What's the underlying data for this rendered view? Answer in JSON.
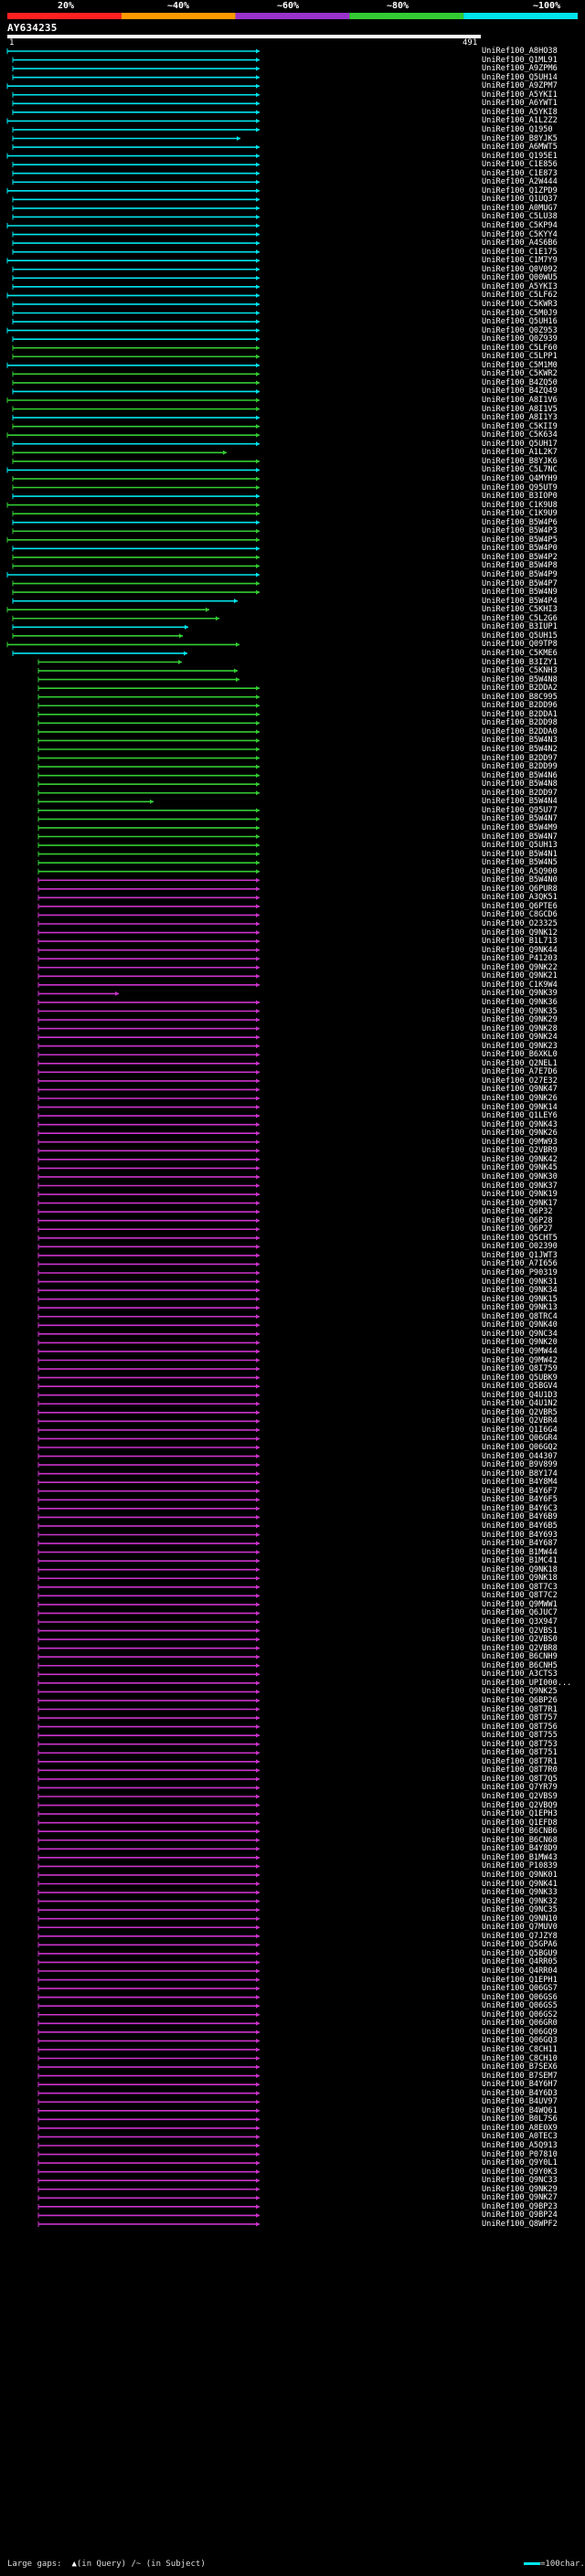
{
  "scale": {
    "ticks": [
      "20%",
      "~40%",
      "~60%",
      "~80%",
      "~100%"
    ],
    "colors": [
      "#ff2020",
      "#ff9900",
      "#9933cc",
      "#33cc33",
      "#00e5ee"
    ]
  },
  "query": {
    "id": "AY634235",
    "start": "1",
    "end": "491"
  },
  "hits": [
    "UniRef100_A8HO38",
    "UniRef100_Q1ML91",
    "UniRef100_A9ZPM6",
    "UniRef100_Q5UH14",
    "UniRef100_A9ZPM7",
    "UniRef100_A5YKI1",
    "UniRef100_A6YWT1",
    "UniRef100_A5YKI8",
    "UniRef100_A1L2Z2",
    "UniRef100_Q1950",
    "UniRef100_B8YJK5",
    "UniRef100_A6MWT5",
    "UniRef100_Q195E1",
    "UniRef100_C1E856",
    "UniRef100_C1E873",
    "UniRef100_A2W444",
    "UniRef100_Q1ZPD9",
    "UniRef100_Q1UQ37",
    "UniRef100_A0MUG7",
    "UniRef100_C5LU38",
    "UniRef100_C5KP94",
    "UniRef100_C5KYY4",
    "UniRef100_A4S6B6",
    "UniRef100_C1E175",
    "UniRef100_C1M7Y9",
    "UniRef100_Q0V092",
    "UniRef100_Q00WU5",
    "UniRef100_A5YKI3",
    "UniRef100_C5LF62",
    "UniRef100_C5KWR3",
    "UniRef100_C5M0J9",
    "UniRef100_Q5UH16",
    "UniRef100_Q0Z953",
    "UniRef100_Q0Z939",
    "UniRef100_C5LF60",
    "UniRef100_C5LPP1",
    "UniRef100_C5M1M0",
    "UniRef100_C5KWR2",
    "UniRef100_B4ZQ50",
    "UniRef100_B4ZQ49",
    "UniRef100_A8I1V6",
    "UniRef100_A8I1V5",
    "UniRef100_A8I1Y3",
    "UniRef100_C5KII9",
    "UniRef100_C5K634",
    "UniRef100_Q5UH17",
    "UniRef100_A1L2K7",
    "UniRef100_B8YJK6",
    "UniRef100_C5L7NC",
    "UniRef100_Q4MYH9",
    "UniRef100_Q95UT9",
    "UniRef100_B3IOP0",
    "UniRef100_C1K9U8",
    "UniRef100_C1K9U9",
    "UniRef100_B5W4P6",
    "UniRef100_B5W4P3",
    "UniRef100_B5W4P5",
    "UniRef100_B5W4P0",
    "UniRef100_B5W4P2",
    "UniRef100_B5W4P8",
    "UniRef100_B5W4P9",
    "UniRef100_B5W4P7",
    "UniRef100_B5W4N9",
    "UniRef100_B5W4P4",
    "UniRef100_C5KHI3",
    "UniRef100_C5L2G6",
    "UniRef100_B3IUP1",
    "UniRef100_Q5UH15",
    "UniRef100_Q09TP8",
    "UniRef100_C5KME6",
    "UniRef100_B3IZY1",
    "UniRef100_C5KNH3",
    "UniRef100_B5W4N8",
    "UniRef100_B2DDA2",
    "UniRef100_B8C995",
    "UniRef100_B2DD96",
    "UniRef100_B2DDA1",
    "UniRef100_B2DD98",
    "UniRef100_B2DDA0",
    "UniRef100_B5W4N3",
    "UniRef100_B5W4N2",
    "UniRef100_B2DD97",
    "UniRef100_B2DD99",
    "UniRef100_B5W4N6",
    "UniRef100_B5W4N8",
    "UniRef100_B2DD97",
    "UniRef100_B5W4N4",
    "UniRef100_Q95U77",
    "UniRef100_B5W4N7",
    "UniRef100_B5W4M9",
    "UniRef100_B5W4N7",
    "UniRef100_Q5UH13",
    "UniRef100_B5W4N1",
    "UniRef100_B5W4N5",
    "UniRef100_A5Q900",
    "UniRef100_B5W4N0",
    "UniRef100_Q6PUR8",
    "UniRef100_A3QK51",
    "UniRef100_Q6PTE6",
    "UniRef100_C8GCD6",
    "UniRef100_O23325",
    "UniRef100_Q9NK12",
    "UniRef100_B1L713",
    "UniRef100_Q9NK44",
    "UniRef100_P41203",
    "UniRef100_Q9NK22",
    "UniRef100_Q9NK21",
    "UniRef100_C1K9W4",
    "UniRef100_Q9NK39",
    "UniRef100_Q9NK36",
    "UniRef100_Q9NK35",
    "UniRef100_Q9NK29",
    "UniRef100_Q9NK28",
    "UniRef100_Q9NK24",
    "UniRef100_Q9NK23",
    "UniRef100_B6XKL0",
    "UniRef100_Q2NEL1",
    "UniRef100_A7E7D6",
    "UniRef100_O27E32",
    "UniRef100_Q9NK47",
    "UniRef100_Q9NK26",
    "UniRef100_Q9NK14",
    "UniRef100_Q1LEY6",
    "UniRef100_Q9NK43",
    "UniRef100_Q9NK26",
    "UniRef100_Q9MW93",
    "UniRef100_Q2VBR9",
    "UniRef100_Q9NK42",
    "UniRef100_Q9NK45",
    "UniRef100_Q9NK30",
    "UniRef100_Q9NK37",
    "UniRef100_Q9NK19",
    "UniRef100_Q9NK17",
    "UniRef100_Q6P32",
    "UniRef100_Q6P28",
    "UniRef100_Q6P27",
    "UniRef100_Q5CHT5",
    "UniRef100_O02390",
    "UniRef100_Q1JWT3",
    "UniRef100_A7I656",
    "UniRef100_P90319",
    "UniRef100_Q9NK31",
    "UniRef100_Q9NK34",
    "UniRef100_Q9NK15",
    "UniRef100_Q9NK13",
    "UniRef100_Q8TRC4",
    "UniRef100_Q9NK40",
    "UniRef100_Q9NC34",
    "UniRef100_Q9NK20",
    "UniRef100_Q9MW44",
    "UniRef100_Q9MW42",
    "UniRef100_Q8I759",
    "UniRef100_Q5UBK9",
    "UniRef100_Q5BGV4",
    "UniRef100_Q4U1D3",
    "UniRef100_Q4U1N2",
    "UniRef100_Q2VBR5",
    "UniRef100_Q2VBR4",
    "UniRef100_Q1I6G4",
    "UniRef100_Q06GR4",
    "UniRef100_Q06GQ2",
    "UniRef100_O44307",
    "UniRef100_B9V899",
    "UniRef100_B8Y174",
    "UniRef100_B4Y8M4",
    "UniRef100_B4Y6F7",
    "UniRef100_B4Y6F5",
    "UniRef100_B4Y6C3",
    "UniRef100_B4Y6B9",
    "UniRef100_B4Y6B5",
    "UniRef100_B4Y693",
    "UniRef100_B4Y687",
    "UniRef100_B1MW44",
    "UniRef100_B1MC41",
    "UniRef100_Q9NK18",
    "UniRef100_Q9NK18",
    "UniRef100_Q8T7C3",
    "UniRef100_Q8T7C2",
    "UniRef100_Q9MWW1",
    "UniRef100_Q6JUC7",
    "UniRef100_Q3X947",
    "UniRef100_Q2VBS1",
    "UniRef100_Q2VBS0",
    "UniRef100_Q2VBR8",
    "UniRef100_B6CNH9",
    "UniRef100_B6CNH5",
    "UniRef100_A3CTS3",
    "UniRef100_UPI000...",
    "UniRef100_Q9NK25",
    "UniRef100_Q6BP26",
    "UniRef100_Q8T7R1",
    "UniRef100_Q8T757",
    "UniRef100_Q8T756",
    "UniRef100_Q8T755",
    "UniRef100_Q8T753",
    "UniRef100_Q8T751",
    "UniRef100_Q8T7R1",
    "UniRef100_Q8T7R0",
    "UniRef100_Q8T7Q5",
    "UniRef100_Q7YR79",
    "UniRef100_Q2VBS9",
    "UniRef100_Q2VBQ9",
    "UniRef100_Q1EPH3",
    "UniRef100_Q1EFD8",
    "UniRef100_B6CNB6",
    "UniRef100_B6CN68",
    "UniRef100_B4Y8D9",
    "UniRef100_B1MW43",
    "UniRef100_P10839",
    "UniRef100_Q9NK01",
    "UniRef100_Q9NK41",
    "UniRef100_Q9NK33",
    "UniRef100_Q9NK32",
    "UniRef100_Q9NC35",
    "UniRef100_Q9NN10",
    "UniRef100_Q7MUV0",
    "UniRef100_Q7JZY8",
    "UniRef100_Q5GPA6",
    "UniRef100_Q5BGU9",
    "UniRef100_Q4RR05",
    "UniRef100_Q4RR04",
    "UniRef100_Q1EPH1",
    "UniRef100_Q06GS7",
    "UniRef100_Q06GS6",
    "UniRef100_Q06GS5",
    "UniRef100_Q06GS2",
    "UniRef100_Q06GR0",
    "UniRef100_Q06GQ9",
    "UniRef100_Q06GQ3",
    "UniRef100_C8CH11",
    "UniRef100_C8CH10",
    "UniRef100_B7SEX6",
    "UniRef100_B7SEM7",
    "UniRef100_B4Y6H7",
    "UniRef100_B4Y6D3",
    "UniRef100_B4UV97",
    "UniRef100_B4WQ61",
    "UniRef100_B0L7S6",
    "UniRef100_A8E0X9",
    "UniRef100_A0TEC3",
    "UniRef100_A5Q913",
    "UniRef100_P07810",
    "UniRef100_Q9Y0L1",
    "UniRef100_Q9Y0K3",
    "UniRef100_Q9NC33",
    "UniRef100_Q9NK29",
    "UniRef100_Q9NK27",
    "UniRef100_Q9BP23",
    "UniRef100_Q9BP24",
    "UniRef100_Q8WPF2"
  ],
  "footer": {
    "large_gaps_label": "Large gaps:",
    "in_query": "(in Query)",
    "in_subject": "(in Subject)",
    "scale_note": "=100char."
  }
}
